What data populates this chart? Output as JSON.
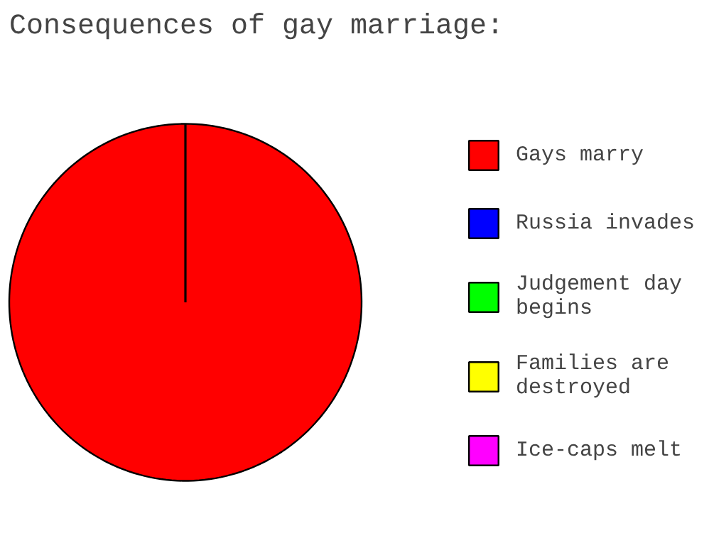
{
  "chart_data": {
    "type": "pie",
    "title": "Consequences of gay marriage:",
    "categories": [
      "Gays marry",
      "Russia invades",
      "Judgement day\nbegins",
      "Families are\ndestroyed",
      "Ice-caps melt"
    ],
    "values": [
      100,
      0,
      0,
      0,
      0
    ],
    "colors": [
      "#ff0000",
      "#0000ff",
      "#00ff00",
      "#ffff00",
      "#ff00ff"
    ],
    "legend": "right"
  }
}
